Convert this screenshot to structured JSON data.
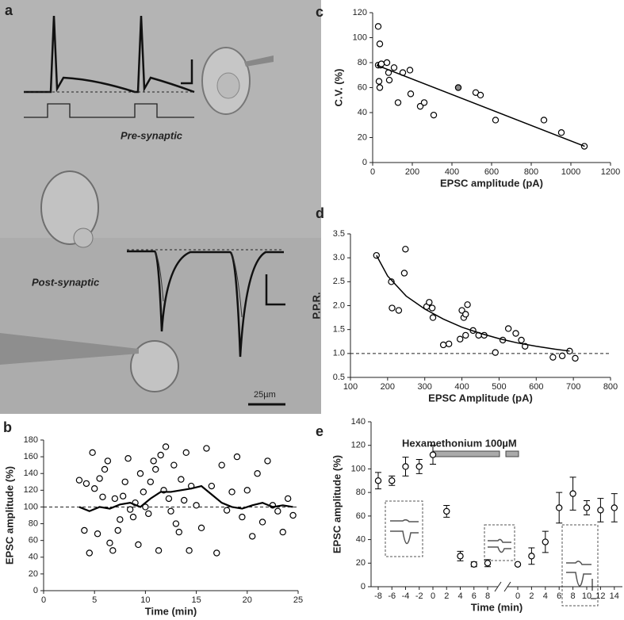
{
  "image_panel": {
    "label": "a",
    "pre_label": "Pre-synaptic",
    "post_label": "Post-synaptic",
    "scale_bar": "25µm"
  },
  "chart_data": [
    {
      "type": "scatter",
      "label": "b",
      "xlabel": "Time (min)",
      "ylabel": "EPSC amplitude (%)",
      "xlim": [
        0,
        25
      ],
      "ylim": [
        0,
        180
      ],
      "xticks": [
        0,
        5,
        10,
        15,
        20,
        25
      ],
      "yticks": [
        0,
        20,
        40,
        60,
        80,
        100,
        120,
        140,
        160,
        180
      ],
      "hline": 100,
      "color": "#000000",
      "series": [
        {
          "mode": "markers",
          "fill": "#ffffff",
          "x": [
            3.5,
            4.0,
            4.2,
            4.5,
            4.8,
            5.0,
            5.3,
            5.5,
            5.8,
            6.0,
            6.3,
            6.5,
            6.8,
            7.0,
            7.3,
            7.5,
            7.8,
            8.0,
            8.3,
            8.5,
            8.8,
            9.0,
            9.3,
            9.5,
            9.8,
            10.0,
            10.3,
            10.5,
            10.8,
            11.0,
            11.3,
            11.5,
            11.8,
            12.0,
            12.3,
            12.5,
            12.8,
            13.0,
            13.3,
            13.5,
            13.8,
            14.0,
            14.3,
            14.5,
            15.0,
            15.5,
            16.0,
            16.5,
            17.0,
            17.5,
            18.0,
            18.5,
            19.0,
            19.5,
            20.0,
            20.5,
            21.0,
            21.5,
            22.0,
            22.5,
            23.0,
            23.5,
            24.0,
            24.5
          ],
          "values": [
            132,
            72,
            128,
            45,
            165,
            122,
            68,
            134,
            112,
            145,
            155,
            57,
            48,
            110,
            72,
            85,
            113,
            130,
            158,
            97,
            88,
            105,
            55,
            140,
            118,
            100,
            92,
            130,
            155,
            145,
            48,
            162,
            120,
            172,
            110,
            95,
            150,
            80,
            70,
            133,
            108,
            165,
            48,
            125,
            102,
            75,
            170,
            125,
            45,
            150,
            96,
            118,
            160,
            88,
            120,
            65,
            140,
            82,
            155,
            102,
            95,
            70,
            110,
            90
          ]
        },
        {
          "mode": "line",
          "width": 2.2,
          "x": [
            3.5,
            4.5,
            5.5,
            6.5,
            7.5,
            8.5,
            9.5,
            10.5,
            11.5,
            12.5,
            13.5,
            14.5,
            15.5,
            16.5,
            17.5,
            18.5,
            19.5,
            20.5,
            21.5,
            22.5,
            23.5,
            24.5
          ],
          "values": [
            100,
            95,
            100,
            98,
            103,
            105,
            100,
            110,
            118,
            118,
            120,
            122,
            125,
            115,
            105,
            100,
            98,
            102,
            105,
            100,
            102,
            100
          ]
        }
      ]
    },
    {
      "type": "scatter",
      "label": "c",
      "xlabel": "EPSC amplitude (pA)",
      "ylabel": "C.V. (%)",
      "xlim": [
        0,
        1200
      ],
      "ylim": [
        0,
        120
      ],
      "xticks": [
        0,
        200,
        400,
        600,
        800,
        1000,
        1200
      ],
      "yticks": [
        0,
        20,
        40,
        60,
        80,
        100,
        120
      ],
      "color": "#000000",
      "series": [
        {
          "mode": "markers",
          "fill": "#ffffff",
          "x": [
            28,
            36,
            28,
            40,
            44,
            32,
            36,
            72,
            80,
            84,
            108,
            128,
            152,
            188,
            192,
            240,
            260,
            308,
            520,
            544,
            620,
            864,
            952,
            1068
          ],
          "values": [
            109,
            95,
            78,
            78,
            79,
            65,
            60,
            80,
            72,
            66,
            76,
            48,
            72,
            74,
            55,
            45,
            48,
            38,
            56,
            54,
            34,
            34,
            24,
            13
          ]
        },
        {
          "mode": "markers",
          "fill": "#888888",
          "x": [
            432
          ],
          "values": [
            60
          ]
        },
        {
          "mode": "line",
          "width": 1.5,
          "x": [
            20,
            1070
          ],
          "values": [
            78,
            13
          ]
        }
      ]
    },
    {
      "type": "scatter",
      "label": "d",
      "xlabel": "EPSC Amplitude  (pA)",
      "ylabel": "P.P.R.",
      "xlim": [
        100,
        800
      ],
      "ylim": [
        0.5,
        3.5
      ],
      "xticks": [
        100,
        200,
        300,
        400,
        500,
        600,
        700,
        800
      ],
      "yticks": [
        0.5,
        {
          "value": 1,
          "label": "1.0"
        },
        1.5,
        {
          "value": 2,
          "label": "2.0"
        },
        2.5,
        {
          "value": 3,
          "label": "3.0"
        },
        3.5
      ],
      "hline": 1,
      "color": "#000000",
      "series": [
        {
          "mode": "markers",
          "fill": "#ffffff",
          "x": [
            170,
            210,
            212,
            230,
            245,
            248,
            305,
            312,
            320,
            322,
            350,
            365,
            395,
            400,
            405,
            410,
            415,
            410,
            430,
            445,
            460,
            490,
            510,
            525,
            545,
            560,
            570,
            645,
            670,
            690,
            705
          ],
          "values": [
            3.05,
            2.5,
            1.95,
            1.9,
            2.68,
            3.18,
            1.98,
            2.07,
            1.95,
            1.75,
            1.18,
            1.2,
            1.3,
            1.9,
            1.75,
            1.82,
            2.02,
            1.38,
            1.48,
            1.38,
            1.38,
            1.02,
            1.28,
            1.52,
            1.42,
            1.28,
            1.15,
            0.92,
            0.95,
            1.05,
            0.9
          ]
        },
        {
          "mode": "line",
          "width": 1.5,
          "x": [
            170,
            200,
            250,
            300,
            350,
            400,
            450,
            500,
            550,
            600,
            650,
            690
          ],
          "values": [
            3.05,
            2.62,
            2.2,
            1.93,
            1.72,
            1.55,
            1.42,
            1.31,
            1.22,
            1.15,
            1.09,
            1.05
          ]
        }
      ]
    },
    {
      "type": "errorbar",
      "label": "e",
      "xlabel": "Time (min)",
      "ylabel": "EPSC amplitude (%)",
      "annotation": "Hexamethonium 100µM",
      "ylim": [
        0,
        140
      ],
      "yticks": [
        0,
        20,
        40,
        60,
        80,
        100,
        120,
        140
      ],
      "color": "#000000",
      "categories": [
        "-8",
        "-6",
        "-4",
        "-2",
        "0",
        "2",
        "4",
        "6",
        "8",
        "0",
        "2",
        "4",
        "6",
        "8",
        "10",
        "12",
        "14"
      ],
      "series": [
        {
          "mode": "markers",
          "fill": "#ffffff",
          "values": [
            90,
            90,
            102,
            102,
            112,
            64,
            26,
            19,
            20,
            19,
            26,
            38,
            67,
            79,
            67,
            65,
            67
          ],
          "errors": [
            7,
            4,
            8,
            6,
            8,
            5,
            4,
            2,
            3,
            null,
            7,
            9,
            13,
            14,
            6,
            10,
            12
          ]
        }
      ]
    }
  ]
}
